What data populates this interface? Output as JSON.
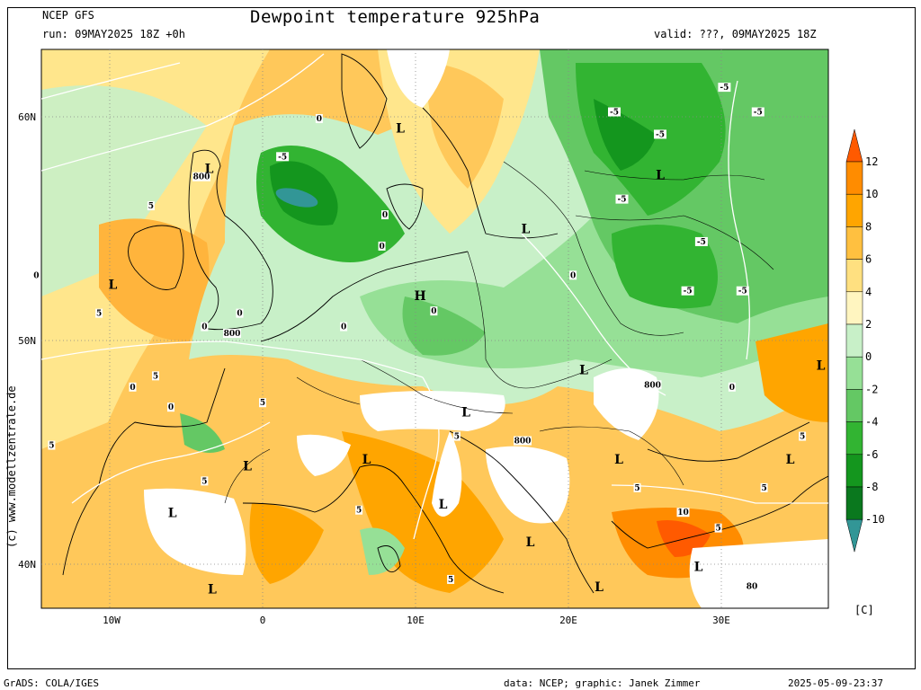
{
  "header": {
    "model": "NCEP GFS",
    "run": "run: 09MAY2025 18Z +0h",
    "title": "Dewpoint temperature 925hPa",
    "valid": "valid: ???, 09MAY2025 18Z"
  },
  "footer": {
    "left": "GrADS: COLA/IGES",
    "credit": "data: NCEP; graphic: Janek Zimmer",
    "timestamp": "2025-05-09-23:37"
  },
  "side_label": "(c) www.modellzentrale.de",
  "axes": {
    "lat_labels": [
      "60N",
      "50N",
      "40N"
    ],
    "lon_labels": [
      "10W",
      "0",
      "10E",
      "20E",
      "30E"
    ]
  },
  "colorbar": {
    "unit": "[C]",
    "labels": [
      "12",
      "10",
      "8",
      "6",
      "4",
      "2",
      "0",
      "-2",
      "-4",
      "-6",
      "-8",
      "-10"
    ],
    "colors": [
      "#ff5a00",
      "#ff8c00",
      "#ffa500",
      "#ffc040",
      "#ffe080",
      "#fff5c0",
      "#c8f0c8",
      "#96e096",
      "#64c864",
      "#32b432",
      "#14961e",
      "#0a781e",
      "#329696"
    ]
  },
  "pressure_systems": [
    {
      "type": "L",
      "lon": 9,
      "lat": 59.3
    },
    {
      "type": "L",
      "lon": -3.5,
      "lat": 57.5
    },
    {
      "type": "L",
      "lon": 17.2,
      "lat": 54.8
    },
    {
      "type": "L",
      "lon": 26,
      "lat": 57.2
    },
    {
      "type": "L",
      "lon": -9.8,
      "lat": 52.3
    },
    {
      "type": "H",
      "lon": 10.3,
      "lat": 51.8
    },
    {
      "type": "L",
      "lon": 21,
      "lat": 48.5
    },
    {
      "type": "L",
      "lon": 36.5,
      "lat": 48.7
    },
    {
      "type": "L",
      "lon": 13.3,
      "lat": 46.6
    },
    {
      "type": "L",
      "lon": 6.8,
      "lat": 44.5
    },
    {
      "type": "L",
      "lon": -1,
      "lat": 44.2
    },
    {
      "type": "L",
      "lon": 23.3,
      "lat": 44.5
    },
    {
      "type": "L",
      "lon": 34.5,
      "lat": 44.5
    },
    {
      "type": "L",
      "lon": -5.9,
      "lat": 42.1
    },
    {
      "type": "L",
      "lon": 11.8,
      "lat": 42.5
    },
    {
      "type": "L",
      "lon": 17.5,
      "lat": 40.8
    },
    {
      "type": "L",
      "lon": 28.5,
      "lat": 39.7
    },
    {
      "type": "L",
      "lon": -3.3,
      "lat": 38.7
    },
    {
      "type": "L",
      "lon": 22,
      "lat": 38.8
    }
  ],
  "contour_labels": [
    {
      "text": "800",
      "lon": -4,
      "lat": 57.2
    },
    {
      "text": "800",
      "lon": -2,
      "lat": 50.2
    },
    {
      "text": "800",
      "lon": 25.5,
      "lat": 47.9
    },
    {
      "text": "800",
      "lon": 17,
      "lat": 45.4
    },
    {
      "text": "80",
      "lon": 32,
      "lat": 38.9
    },
    {
      "text": "-5",
      "lon": 1.3,
      "lat": 58.1
    },
    {
      "text": "-5",
      "lon": 30.2,
      "lat": 61.2
    },
    {
      "text": "-5",
      "lon": 23,
      "lat": 60.1
    },
    {
      "text": "-5",
      "lon": 26,
      "lat": 59.1
    },
    {
      "text": "-5",
      "lon": 32.4,
      "lat": 60.1
    },
    {
      "text": "-5",
      "lon": 23.5,
      "lat": 56.2
    },
    {
      "text": "-5",
      "lon": 28.7,
      "lat": 54.3
    },
    {
      "text": "-5",
      "lon": 27.8,
      "lat": 52.1
    },
    {
      "text": "-5",
      "lon": 31.4,
      "lat": 52.1
    },
    {
      "text": "0",
      "lon": 3.7,
      "lat": 59.8
    },
    {
      "text": "0",
      "lon": 8,
      "lat": 55.5
    },
    {
      "text": "0",
      "lon": 7.8,
      "lat": 54.1
    },
    {
      "text": "0",
      "lon": 20.3,
      "lat": 52.8
    },
    {
      "text": "0",
      "lon": 11.2,
      "lat": 51.2
    },
    {
      "text": "0",
      "lon": -1.5,
      "lat": 51.1
    },
    {
      "text": "0",
      "lon": -3.8,
      "lat": 50.5
    },
    {
      "text": "0",
      "lon": 5.3,
      "lat": 50.5
    },
    {
      "text": "0",
      "lon": -8.5,
      "lat": 47.8
    },
    {
      "text": "0",
      "lon": -6,
      "lat": 46.9
    },
    {
      "text": "0",
      "lon": 30.7,
      "lat": 47.8
    },
    {
      "text": "0",
      "lon": -14.8,
      "lat": 52.8
    },
    {
      "text": "5",
      "lon": -7.3,
      "lat": 55.9
    },
    {
      "text": "5",
      "lon": -10.7,
      "lat": 51.1
    },
    {
      "text": "5",
      "lon": -7,
      "lat": 48.3
    },
    {
      "text": "5",
      "lon": 0,
      "lat": 47.1
    },
    {
      "text": "5",
      "lon": -13.8,
      "lat": 45.2
    },
    {
      "text": "5",
      "lon": -3.8,
      "lat": 43.6
    },
    {
      "text": "5",
      "lon": 6.3,
      "lat": 42.3
    },
    {
      "text": "5",
      "lon": 12.7,
      "lat": 45.6
    },
    {
      "text": "5",
      "lon": 12.3,
      "lat": 39.2
    },
    {
      "text": "5",
      "lon": 24.5,
      "lat": 43.3
    },
    {
      "text": "5",
      "lon": 29.8,
      "lat": 41.5
    },
    {
      "text": "5",
      "lon": 35.3,
      "lat": 45.6
    },
    {
      "text": "5",
      "lon": 32.8,
      "lat": 43.3
    },
    {
      "text": "10",
      "lon": 27.5,
      "lat": 42.2
    }
  ]
}
